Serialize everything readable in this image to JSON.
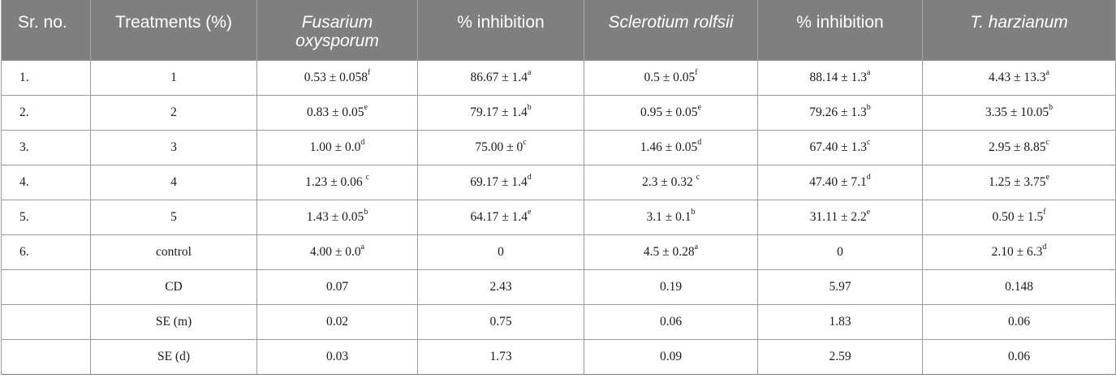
{
  "headers": [
    {
      "text": "Sr. no.",
      "italic": false
    },
    {
      "text": "Treatments (%)",
      "italic": false
    },
    {
      "text": "Fusarium oxysporum",
      "italic": true
    },
    {
      "text": "% inhibition",
      "italic": false
    },
    {
      "text": "Sclerotium rolfsii",
      "italic": true
    },
    {
      "text": "% inhibition",
      "italic": false
    },
    {
      "text": "T. harzianum",
      "italic": true
    }
  ],
  "rows": [
    {
      "cells": [
        {
          "v": "1.",
          "s": ""
        },
        {
          "v": "1",
          "s": ""
        },
        {
          "v": "0.53 ± 0.058",
          "s": "f"
        },
        {
          "v": "86.67 ± 1.4",
          "s": "a"
        },
        {
          "v": "0.5 ± 0.05",
          "s": "f"
        },
        {
          "v": "88.14 ± 1.3",
          "s": "a"
        },
        {
          "v": "4.43 ± 13.3",
          "s": "a"
        }
      ]
    },
    {
      "cells": [
        {
          "v": "2.",
          "s": ""
        },
        {
          "v": "2",
          "s": ""
        },
        {
          "v": "0.83 ± 0.05",
          "s": "e"
        },
        {
          "v": "79.17 ± 1.4",
          "s": "b"
        },
        {
          "v": "0.95 ± 0.05",
          "s": "e"
        },
        {
          "v": "79.26 ± 1.3",
          "s": "b"
        },
        {
          "v": "3.35 ± 10.05",
          "s": "b"
        }
      ]
    },
    {
      "cells": [
        {
          "v": "3.",
          "s": ""
        },
        {
          "v": "3",
          "s": ""
        },
        {
          "v": "1.00 ± 0.0",
          "s": "d"
        },
        {
          "v": "75.00 ± 0",
          "s": "c"
        },
        {
          "v": "1.46 ± 0.05",
          "s": "d"
        },
        {
          "v": "67.40 ± 1.3",
          "s": "c"
        },
        {
          "v": "2.95 ± 8.85",
          "s": "c"
        }
      ]
    },
    {
      "cells": [
        {
          "v": "4.",
          "s": ""
        },
        {
          "v": "4",
          "s": ""
        },
        {
          "v": "1.23 ± 0.06 ",
          "s": "c"
        },
        {
          "v": "69.17 ± 1.4",
          "s": "d"
        },
        {
          "v": "2.3 ± 0.32 ",
          "s": "c"
        },
        {
          "v": "47.40 ± 7.1",
          "s": "d"
        },
        {
          "v": "1.25 ± 3.75",
          "s": "e"
        }
      ]
    },
    {
      "cells": [
        {
          "v": "5.",
          "s": ""
        },
        {
          "v": "5",
          "s": ""
        },
        {
          "v": "1.43 ± 0.05",
          "s": "b"
        },
        {
          "v": "64.17 ± 1.4",
          "s": "e"
        },
        {
          "v": "3.1 ± 0.1",
          "s": "b"
        },
        {
          "v": "31.11 ± 2.2",
          "s": "e"
        },
        {
          "v": "0.50 ± 1.5",
          "s": "f"
        }
      ]
    },
    {
      "cells": [
        {
          "v": "6.",
          "s": ""
        },
        {
          "v": "control",
          "s": ""
        },
        {
          "v": "4.00 ± 0.0",
          "s": "a"
        },
        {
          "v": "0",
          "s": ""
        },
        {
          "v": "4.5 ± 0.28",
          "s": "a"
        },
        {
          "v": "0",
          "s": ""
        },
        {
          "v": "2.10 ± 6.3",
          "s": "d"
        }
      ]
    },
    {
      "cells": [
        {
          "v": "",
          "s": ""
        },
        {
          "v": "CD",
          "s": ""
        },
        {
          "v": "0.07",
          "s": ""
        },
        {
          "v": "2.43",
          "s": ""
        },
        {
          "v": "0.19",
          "s": ""
        },
        {
          "v": "5.97",
          "s": ""
        },
        {
          "v": "0.148",
          "s": ""
        }
      ]
    },
    {
      "cells": [
        {
          "v": "",
          "s": ""
        },
        {
          "v": "SE (m)",
          "s": ""
        },
        {
          "v": "0.02",
          "s": ""
        },
        {
          "v": "0.75",
          "s": ""
        },
        {
          "v": "0.06",
          "s": ""
        },
        {
          "v": "1.83",
          "s": ""
        },
        {
          "v": "0.06",
          "s": ""
        }
      ]
    },
    {
      "cells": [
        {
          "v": "",
          "s": ""
        },
        {
          "v": "SE (d)",
          "s": ""
        },
        {
          "v": "0.03",
          "s": ""
        },
        {
          "v": "1.73",
          "s": ""
        },
        {
          "v": "0.09",
          "s": ""
        },
        {
          "v": "2.59",
          "s": ""
        },
        {
          "v": "0.06",
          "s": ""
        }
      ]
    }
  ]
}
